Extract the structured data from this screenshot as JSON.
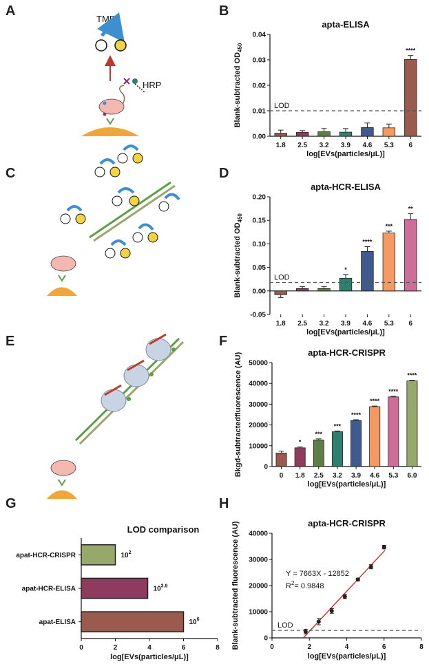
{
  "panels": {
    "A": {
      "letter": "A",
      "tmb": "TMB",
      "hrp": "HRP"
    },
    "B": {
      "letter": "B"
    },
    "C": {
      "letter": "C"
    },
    "D": {
      "letter": "D"
    },
    "E": {
      "letter": "E"
    },
    "F": {
      "letter": "F"
    },
    "G": {
      "letter": "G"
    },
    "H": {
      "letter": "H"
    }
  },
  "colors": {
    "c1": "#9B5A4E",
    "c2": "#8E3B5E",
    "c3": "#5F7E45",
    "c4": "#2F7F6E",
    "c5": "#3E5A8E",
    "c6": "#F59A62",
    "c7": "#CC6E97",
    "c8": "#97A86B",
    "lod": "#555555",
    "fit": "#D62828",
    "arrow": "#3D8FCF",
    "stem": "#C0392B",
    "surface": "#F0A63A",
    "vesicle": "#F4B8B0",
    "dye": "#F0D443"
  },
  "chart_data": [
    {
      "id": "B",
      "type": "bar",
      "title": "apta-ELISA",
      "xlabel": "log[EVs(particles/μL)]",
      "ylabel_main": "Blank-subtracted OD",
      "ylabel_sub": "450",
      "categories": [
        "1.8",
        "2.5",
        "3.2",
        "3.9",
        "4.6",
        "5.3",
        "6"
      ],
      "values": [
        0.0012,
        0.0015,
        0.0018,
        0.0016,
        0.0034,
        0.0033,
        0.0302
      ],
      "errors": [
        0.0012,
        0.0007,
        0.0012,
        0.0014,
        0.0018,
        0.0015,
        0.0015
      ],
      "significance": [
        "",
        "",
        "",
        "",
        "",
        "",
        "****"
      ],
      "colors": [
        "c1",
        "c2",
        "c3",
        "c4",
        "c5",
        "c6",
        "c1"
      ],
      "ylim": [
        0,
        0.04
      ],
      "yticks": [
        "0.00",
        "0.01",
        "0.02",
        "0.03",
        "0.04"
      ],
      "lod": 0.01,
      "lod_label": "LOD"
    },
    {
      "id": "D",
      "type": "bar",
      "title": "apta-HCR-ELISA",
      "xlabel": "log[EVs(particles/μL)]",
      "ylabel_main": "Blank-subtracted OD",
      "ylabel_sub": "450",
      "categories": [
        "1.8",
        "2.5",
        "3.2",
        "3.9",
        "4.6",
        "5.3",
        "6"
      ],
      "values": [
        -0.008,
        0.005,
        0.005,
        0.027,
        0.084,
        0.123,
        0.152
      ],
      "errors": [
        0.006,
        0.004,
        0.004,
        0.008,
        0.01,
        0.004,
        0.012
      ],
      "significance": [
        "",
        "",
        "",
        "*",
        "****",
        "***",
        "**"
      ],
      "colors": [
        "c1",
        "c2",
        "c3",
        "c4",
        "c5",
        "c6",
        "c7"
      ],
      "ylim": [
        -0.05,
        0.2
      ],
      "yticks": [
        "-0.05",
        "0.00",
        "0.05",
        "0.10",
        "0.15",
        "0.20"
      ],
      "lod": 0.018,
      "lod_label": "LOD"
    },
    {
      "id": "F",
      "type": "bar",
      "title": "apta-HCR-CRISPR",
      "xlabel": "log[EVs(particles/μL)]",
      "ylabel": "Bkgd-subtractedfluorescence (AU)",
      "categories": [
        "0",
        "1.8",
        "2.5",
        "3.2",
        "3.9",
        "4.6",
        "5.3",
        "6.0"
      ],
      "values": [
        6500,
        9000,
        12800,
        16800,
        22200,
        28800,
        33500,
        41200
      ],
      "errors": [
        900,
        400,
        500,
        300,
        300,
        300,
        300,
        300
      ],
      "significance": [
        "",
        "*",
        "***",
        "***",
        "****",
        "****",
        "****",
        "****"
      ],
      "colors": [
        "c1",
        "c2",
        "c3",
        "c4",
        "c5",
        "c6",
        "c7",
        "c8"
      ],
      "ylim": [
        0,
        50000
      ],
      "yticks": [
        "0",
        "10000",
        "20000",
        "30000",
        "40000",
        "50000"
      ]
    },
    {
      "id": "G",
      "type": "bar",
      "orientation": "horizontal",
      "title": "LOD comparison",
      "xlabel": "log[EVs(particles/μL)]",
      "categories": [
        "apat-HCR-CRISPR",
        "apat-HCR-ELISA",
        "apat-ELISA"
      ],
      "values": [
        2,
        3.9,
        6
      ],
      "value_labels": [
        {
          "base": "10",
          "exp": "2"
        },
        {
          "base": "10",
          "exp": "3.9"
        },
        {
          "base": "10",
          "exp": "6"
        }
      ],
      "colors": [
        "c8",
        "c2",
        "c1"
      ],
      "xlim": [
        0,
        8
      ],
      "xticks": [
        "0",
        "2",
        "4",
        "6",
        "8"
      ]
    },
    {
      "id": "H",
      "type": "scatter",
      "title": "apta-HCR-CRISPR",
      "xlabel": "log[EVs(particles/μL)]",
      "ylabel": "Blank-subtracted fluorescence (AU)",
      "x": [
        1.8,
        2.5,
        3.2,
        3.9,
        4.6,
        5.3,
        6.0
      ],
      "y": [
        2400,
        6200,
        10300,
        15800,
        22300,
        27200,
        34700
      ],
      "errors": [
        900,
        1200,
        900,
        800,
        500,
        800,
        700
      ],
      "fit": {
        "slope": 7663,
        "intercept": -12852,
        "equation": "Y = 7663X - 12852",
        "r2_prefix": "R",
        "r2_sup": "2",
        "r2_rest": "= 0.9848"
      },
      "xlim": [
        0,
        8
      ],
      "ylim": [
        0,
        40000
      ],
      "xticks": [
        "0",
        "2",
        "4",
        "6",
        "8"
      ],
      "yticks": [
        "0",
        "10000",
        "20000",
        "30000",
        "40000"
      ],
      "lod": 2850,
      "lod_label": "LOD"
    }
  ]
}
